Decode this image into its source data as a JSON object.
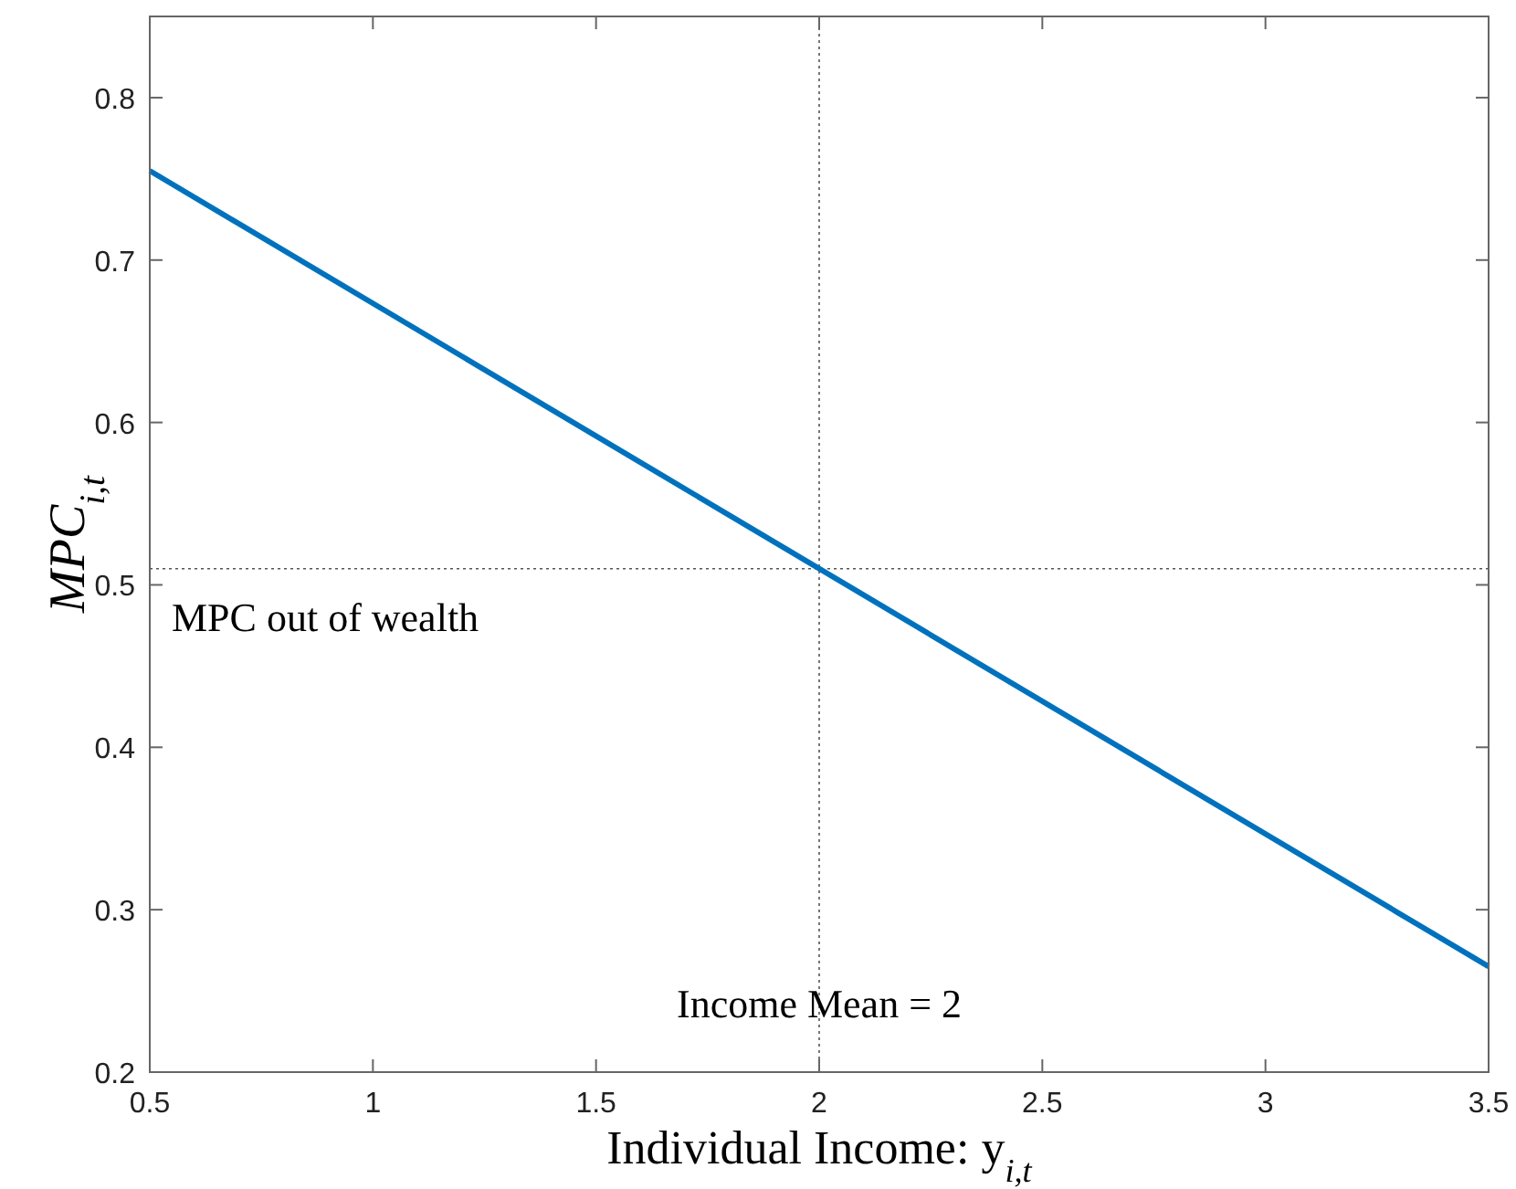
{
  "chart_data": {
    "type": "line",
    "xlabel": "Individual Income: y$_{i,t}$",
    "ylabel": "MPC$_{i,t}$",
    "x": [
      0.5,
      3.5
    ],
    "series": [
      {
        "color": "#0072bd",
        "values": [
          0.755,
          0.265
        ]
      }
    ],
    "xlim": [
      0.5,
      3.5
    ],
    "xticks": [
      0.5,
      1,
      1.5,
      2,
      2.5,
      3,
      3.5
    ],
    "ylim": [
      0.2,
      0.85
    ],
    "yticks": [
      0.2,
      0.3,
      0.4,
      0.5,
      0.6,
      0.7,
      0.8
    ],
    "ref_lines": [
      {
        "axis": "x",
        "value": 2,
        "label": "Income Mean = 2",
        "color": "#555555",
        "line_style": "dotted"
      },
      {
        "axis": "y",
        "value": 0.51,
        "label": "MPC out of wealth",
        "color": "#555555",
        "line_style": "dotted"
      }
    ],
    "grid": false,
    "marker": "none",
    "line_style": "solid"
  }
}
